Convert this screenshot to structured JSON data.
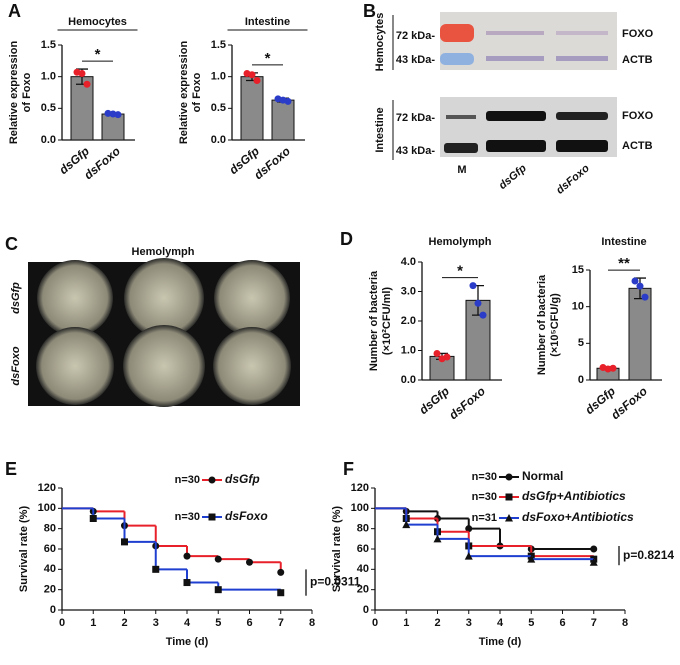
{
  "panels": [
    "A",
    "B",
    "C",
    "D",
    "E",
    "F"
  ],
  "blot": {
    "groups": [
      "Hemocytes",
      "Intestine"
    ],
    "markers": [
      "72 kDa-",
      "43 kDa-",
      "72 kDa-",
      "43 kDa-"
    ],
    "proteins": [
      "FOXO",
      "ACTB",
      "FOXO",
      "ACTB"
    ],
    "lanes": [
      "M",
      "dsGfp",
      "dsFoxo"
    ]
  },
  "plates": {
    "title": "Hemolymph",
    "rows": [
      "dsGfp",
      "dsFoxo"
    ]
  },
  "chart_data": [
    {
      "type": "bar",
      "title": "Hemocytes",
      "ylabel": [
        "Relative expression",
        "of Foxo"
      ],
      "categories": [
        "dsGfp",
        "dsFoxo"
      ],
      "values": [
        1.0,
        0.41
      ],
      "errors": [
        0.12,
        0.02
      ],
      "points": [
        [
          1.07,
          1.05,
          0.88
        ],
        [
          0.42,
          0.41,
          0.4
        ]
      ],
      "point_colors": [
        "#e8202a",
        "#2a3cc8"
      ],
      "color": "#8a8a8a",
      "ylim": [
        0,
        1.5
      ],
      "yticks": [
        {
          "value": 0,
          "label": "0.0"
        },
        0.5,
        {
          "value": 1,
          "label": "1.0"
        },
        1.5
      ],
      "significance": "*"
    },
    {
      "type": "bar",
      "title": "Intestine",
      "ylabel": [
        "Relative expression",
        "of Foxo"
      ],
      "categories": [
        "dsGfp",
        "dsFoxo"
      ],
      "values": [
        1.0,
        0.63
      ],
      "errors": [
        0.06,
        0.03
      ],
      "points": [
        [
          1.05,
          1.03,
          0.94
        ],
        [
          0.65,
          0.63,
          0.61
        ]
      ],
      "point_colors": [
        "#e8202a",
        "#2a3cc8"
      ],
      "color": "#8a8a8a",
      "ylim": [
        0,
        1.5
      ],
      "yticks": [
        {
          "value": 0,
          "label": "0.0"
        },
        0.5,
        {
          "value": 1,
          "label": "1.0"
        },
        1.5
      ],
      "significance": "*"
    },
    {
      "type": "bar",
      "title": "Hemolymph",
      "ylabel": [
        "Number of bacteria",
        "(×10²CFU/ml)"
      ],
      "categories": [
        "dsGfp",
        "dsFoxo"
      ],
      "values": [
        0.8,
        2.7
      ],
      "errors": [
        0.1,
        0.5
      ],
      "points": [
        [
          0.9,
          0.72,
          0.78
        ],
        [
          3.2,
          2.6,
          2.2
        ]
      ],
      "point_colors": [
        "#e8202a",
        "#2a3cc8"
      ],
      "color": "#8a8a8a",
      "ylim": [
        0,
        4
      ],
      "yticks": [
        {
          "value": 0,
          "label": "0.0"
        },
        {
          "value": 1,
          "label": "1.0"
        },
        {
          "value": 2,
          "label": "2.0"
        },
        {
          "value": 3,
          "label": "3.0"
        },
        {
          "value": 4,
          "label": "4.0"
        }
      ],
      "significance": "*"
    },
    {
      "type": "bar",
      "title": "Intestine",
      "ylabel": [
        "Number of bacteria",
        "(×10⁵CFU/g)"
      ],
      "categories": [
        "dsGfp",
        "dsFoxo"
      ],
      "values": [
        1.6,
        12.5
      ],
      "errors": [
        0.2,
        1.4
      ],
      "points": [
        [
          1.7,
          1.5,
          1.6
        ],
        [
          13.5,
          12.8,
          11.3
        ]
      ],
      "point_colors": [
        "#e8202a",
        "#2a3cc8"
      ],
      "color": "#8a8a8a",
      "ylim": [
        0,
        15
      ],
      "yticks": [
        0,
        5,
        10,
        15
      ],
      "significance": "**"
    },
    {
      "type": "line",
      "step": true,
      "xlabel": "Time (d)",
      "ylabel": "Survival rate (%)",
      "xlim": [
        0,
        8
      ],
      "xticks": [
        0,
        1,
        2,
        3,
        4,
        5,
        6,
        7,
        8
      ],
      "ylim": [
        0,
        120
      ],
      "yticks": [
        0,
        20,
        40,
        60,
        80,
        100,
        120
      ],
      "annotation": "p=0.0311",
      "series": [
        {
          "name": "dsGfp",
          "n": "n=30",
          "color": "#e8202a",
          "marker": "circle",
          "x": [
            0,
            1,
            2,
            3,
            4,
            5,
            6,
            7
          ],
          "values": [
            100,
            97,
            83,
            63,
            53,
            50,
            47,
            37
          ]
        },
        {
          "name": "dsFoxo",
          "n": "n=30",
          "color": "#1f3fd0",
          "marker": "square",
          "x": [
            0,
            1,
            2,
            3,
            4,
            5,
            7
          ],
          "values": [
            100,
            90,
            67,
            40,
            27,
            20,
            17
          ]
        }
      ]
    },
    {
      "type": "line",
      "step": true,
      "xlabel": "Time (d)",
      "ylabel": "Survival rate (%)",
      "xlim": [
        0,
        8
      ],
      "xticks": [
        0,
        1,
        2,
        3,
        4,
        5,
        6,
        7,
        8
      ],
      "ylim": [
        0,
        120
      ],
      "yticks": [
        0,
        20,
        40,
        60,
        80,
        100,
        120
      ],
      "annotation": "p=0.8214",
      "series": [
        {
          "name": "Normal",
          "n": "n=30",
          "color": "#111111",
          "marker": "circle",
          "x": [
            0,
            1,
            2,
            3,
            4,
            5,
            7
          ],
          "values": [
            100,
            97,
            90,
            80,
            63,
            60,
            60
          ]
        },
        {
          "name": "dsGfp+Antibiotics",
          "n": "n=30",
          "color": "#e8202a",
          "marker": "square",
          "x": [
            0,
            1,
            2,
            3,
            5,
            7
          ],
          "values": [
            100,
            90,
            77,
            63,
            53,
            50
          ]
        },
        {
          "name": "dsFoxo+Antibiotics",
          "n": "n=31",
          "color": "#1f3fd0",
          "marker": "triangle",
          "x": [
            0,
            1,
            2,
            3,
            5,
            7
          ],
          "values": [
            100,
            84,
            70,
            53,
            50,
            47
          ]
        }
      ]
    }
  ]
}
